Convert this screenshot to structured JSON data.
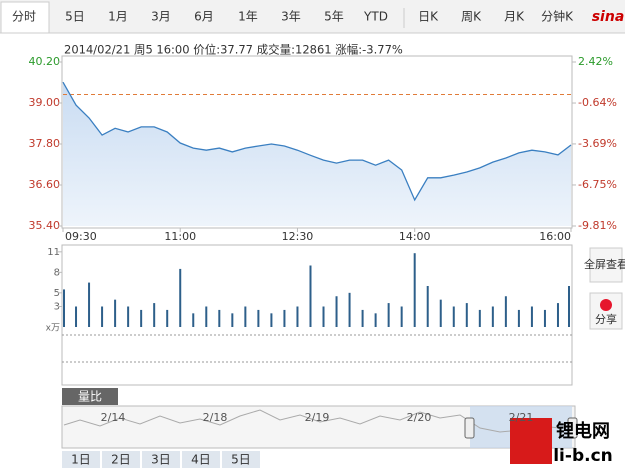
{
  "tabs": [
    "分时",
    "5日",
    "1月",
    "3月",
    "6月",
    "1年",
    "3年",
    "5年",
    "YTD",
    "日K",
    "周K",
    "月K",
    "分钟K"
  ],
  "logo": "sina",
  "info": "2014/02/21 周5 16:00 价位:37.77 成交量:12861 涨幅:-3.77%",
  "chart_data": [
    {
      "type": "line",
      "color": "#3a7fc1",
      "x": [
        0,
        10,
        20,
        30,
        40,
        50,
        60,
        70,
        80,
        90,
        100,
        110,
        120,
        130,
        140,
        150,
        160,
        170,
        180,
        190,
        200,
        210,
        220,
        230,
        240,
        250,
        260,
        270,
        280,
        290,
        300,
        310,
        320,
        330,
        340,
        350,
        360,
        370,
        380,
        390
      ],
      "values": [
        39.61,
        38.94,
        38.56,
        38.06,
        38.26,
        38.15,
        38.3,
        38.3,
        38.15,
        37.83,
        37.68,
        37.62,
        37.68,
        37.57,
        37.68,
        37.74,
        37.8,
        37.74,
        37.62,
        37.47,
        37.33,
        37.24,
        37.33,
        37.33,
        37.18,
        37.33,
        37.04,
        36.16,
        36.81,
        36.81,
        36.89,
        36.98,
        37.1,
        37.27,
        37.39,
        37.54,
        37.62,
        37.57,
        37.48,
        37.77
      ],
      "baseline": 39.25,
      "xlim": [
        0,
        390
      ],
      "xticks": [
        {
          "value": 0,
          "label": "09:30"
        },
        {
          "value": 90,
          "label": "11:00"
        },
        {
          "value": 180,
          "label": "12:30"
        },
        {
          "value": 270,
          "label": "14:00"
        },
        {
          "value": 390,
          "label": "16:00"
        }
      ],
      "ylim": [
        35.4,
        40.2
      ],
      "yticks": [
        {
          "value": 35.4,
          "label": "35.40"
        },
        {
          "value": 36.6,
          "label": "36.60"
        },
        {
          "value": 37.8,
          "label": "37.80"
        },
        {
          "value": 39,
          "label": "39.00"
        },
        {
          "value": 40.2,
          "label": "40.20"
        }
      ],
      "y2lim": [
        -9.81,
        2.42
      ],
      "y2ticks": [
        {
          "value": -9.81,
          "label": "-9.81%"
        },
        {
          "value": -6.75,
          "label": "-6.75%"
        },
        {
          "value": -3.69,
          "label": "-3.69%"
        },
        {
          "value": -0.64,
          "label": "-0.64%"
        },
        {
          "value": 2.42,
          "label": "2.42%"
        }
      ]
    },
    {
      "type": "bar",
      "color": "#2d5f8a",
      "unit": "x万",
      "x": [
        0,
        10,
        20,
        30,
        40,
        50,
        60,
        70,
        80,
        90,
        100,
        110,
        120,
        130,
        140,
        150,
        160,
        170,
        180,
        190,
        200,
        210,
        220,
        230,
        240,
        250,
        260,
        270,
        280,
        290,
        300,
        310,
        320,
        330,
        340,
        350,
        360,
        370,
        380,
        390
      ],
      "values": [
        5.5,
        3,
        6.5,
        3,
        4,
        3,
        2.5,
        3.5,
        2.5,
        8.5,
        2,
        3,
        2.5,
        2,
        3,
        2.5,
        2,
        2.5,
        3,
        9,
        3,
        4.5,
        5,
        2.5,
        2,
        3.5,
        3,
        10.8,
        6,
        4,
        3,
        3.5,
        2.5,
        3,
        4.5,
        2.5,
        3,
        2.5,
        3.5,
        6
      ],
      "xlim": [
        0,
        390
      ],
      "ylim": [
        0,
        12
      ],
      "yticks": [
        3,
        5,
        8,
        11
      ]
    }
  ],
  "side_buttons": [
    "全屏查看",
    "分享"
  ],
  "panel_tab": "量比",
  "navigator": [
    "2/14",
    "2/18",
    "2/19",
    "2/20",
    "2/21"
  ],
  "day_buttons": [
    "1日",
    "2日",
    "3日",
    "4日",
    "5日"
  ],
  "watermark": {
    "brand": "锂电网",
    "url": "li-b.cn"
  }
}
